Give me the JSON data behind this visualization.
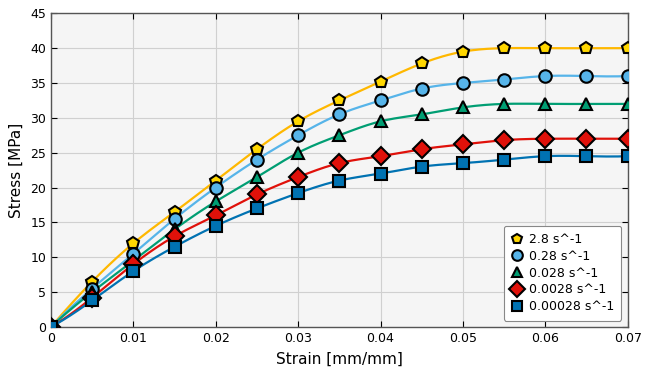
{
  "title": "",
  "xlabel": "Strain [mm/mm]",
  "ylabel": "Stress [MPa]",
  "xlim": [
    0,
    0.07
  ],
  "ylim": [
    0,
    45
  ],
  "xticks": [
    0,
    0.01,
    0.02,
    0.03,
    0.04,
    0.05,
    0.06,
    0.07
  ],
  "yticks": [
    0,
    5,
    10,
    15,
    20,
    25,
    30,
    35,
    40,
    45
  ],
  "series": [
    {
      "label": "2.8 s^-1",
      "color": "#FFD700",
      "line_color": "#FFB800",
      "marker": "p",
      "x": [
        0,
        0.005,
        0.01,
        0.015,
        0.02,
        0.025,
        0.03,
        0.035,
        0.04,
        0.045,
        0.05,
        0.055,
        0.06,
        0.065,
        0.07
      ],
      "y": [
        0,
        6.5,
        12.0,
        16.5,
        21.0,
        25.5,
        29.5,
        32.5,
        35.2,
        37.8,
        39.5,
        40.0,
        40.0,
        40.0,
        40.0
      ]
    },
    {
      "label": "0.28 s^-1",
      "color": "#56B4E9",
      "line_color": "#56B4E9",
      "marker": "o",
      "x": [
        0,
        0.005,
        0.01,
        0.015,
        0.02,
        0.025,
        0.03,
        0.035,
        0.04,
        0.045,
        0.05,
        0.055,
        0.06,
        0.065,
        0.07
      ],
      "y": [
        0,
        5.5,
        10.5,
        15.5,
        20.0,
        24.0,
        27.5,
        30.5,
        32.5,
        34.2,
        35.0,
        35.5,
        36.0,
        36.0,
        36.0
      ]
    },
    {
      "label": "0.028 s^-1",
      "color": "#009E73",
      "line_color": "#009E73",
      "marker": "^",
      "x": [
        0,
        0.005,
        0.01,
        0.015,
        0.02,
        0.025,
        0.03,
        0.035,
        0.04,
        0.045,
        0.05,
        0.055,
        0.06,
        0.065,
        0.07
      ],
      "y": [
        0,
        5.0,
        9.5,
        14.0,
        18.0,
        21.5,
        25.0,
        27.5,
        29.5,
        30.5,
        31.5,
        32.0,
        32.0,
        32.0,
        32.0
      ]
    },
    {
      "label": "0.0028 s^-1",
      "color": "#E0110A",
      "line_color": "#E0110A",
      "marker": "D",
      "x": [
        0,
        0.005,
        0.01,
        0.015,
        0.02,
        0.025,
        0.03,
        0.035,
        0.04,
        0.045,
        0.05,
        0.055,
        0.06,
        0.065,
        0.07
      ],
      "y": [
        0,
        4.2,
        9.0,
        13.0,
        16.0,
        19.0,
        21.5,
        23.5,
        24.5,
        25.5,
        26.2,
        26.8,
        27.0,
        27.0,
        27.0
      ]
    },
    {
      "label": "0.00028 s^-1",
      "color": "#0072B2",
      "line_color": "#0072B2",
      "marker": "s",
      "x": [
        0,
        0.005,
        0.01,
        0.015,
        0.02,
        0.025,
        0.03,
        0.035,
        0.04,
        0.045,
        0.05,
        0.055,
        0.06,
        0.065,
        0.07
      ],
      "y": [
        0,
        3.8,
        8.0,
        11.5,
        14.5,
        17.0,
        19.2,
        21.0,
        22.0,
        23.0,
        23.5,
        24.0,
        24.5,
        24.5,
        24.5
      ]
    }
  ],
  "background_color": "#ffffff",
  "plot_bg_color": "#f5f5f5",
  "grid_color": "#d0d0d0",
  "marker_size": 9,
  "linewidth": 1.6,
  "marker_edge_width": 1.5,
  "legend_fontsize": 9,
  "axis_fontsize": 11,
  "tick_fontsize": 9
}
